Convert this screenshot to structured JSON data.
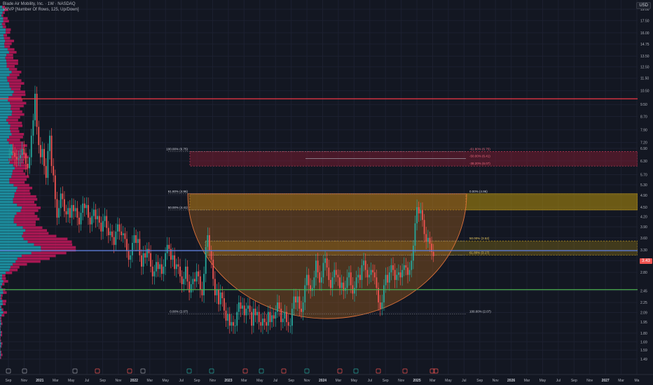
{
  "header": {
    "symbol_line": "Blade Air Mobility, Inc. · 1W · NASDAQ",
    "indicator_line": "VRVP [Number Of Rows, 125, Up/Down]"
  },
  "currency": "USD",
  "last_price_badge": "3.43",
  "colors": {
    "bg": "#131722",
    "grid": "#1c2030",
    "up": "#26a69a",
    "down": "#ef5350",
    "resistance": "#f23645",
    "support": "#4caf50",
    "poc": "#5b7bd5",
    "zone_fill": "#a5870f",
    "zone_border": "#c9a227",
    "cup_fill": "#b86a1d",
    "red_zone": "#8c1c34",
    "vp_up": "#1e9fb0",
    "vp_down": "#c2185b"
  },
  "chart_data": {
    "type": "candlestick",
    "scale": "log",
    "ylim": [
      1.49,
      19.5
    ],
    "y_ticks": [
      "19.00",
      "17.50",
      "16.00",
      "14.75",
      "13.50",
      "12.50",
      "11.50",
      "10.50",
      "9.50",
      "8.70",
      "7.90",
      "7.20",
      "6.90",
      "6.30",
      "5.70",
      "5.30",
      "4.90",
      "4.50",
      "4.20",
      "3.90",
      "3.60",
      "3.30",
      "3.05",
      "2.80",
      "2.45",
      "2.25",
      "2.09",
      "1.95",
      "1.80",
      "1.69",
      "1.59",
      "1.49"
    ],
    "x_ticks": [
      "Sep",
      "Nov",
      "2021",
      "Mar",
      "May",
      "Jul",
      "Sep",
      "Nov",
      "2022",
      "Mar",
      "May",
      "Jul",
      "Sep",
      "Nov",
      "2023",
      "Mar",
      "May",
      "Jul",
      "Sep",
      "Nov",
      "2024",
      "Mar",
      "May",
      "Jul",
      "Sep",
      "Nov",
      "2025",
      "Mar",
      "May",
      "Jul",
      "Sep",
      "Nov",
      "2026",
      "Mar",
      "May",
      "Jul",
      "Sep",
      "Nov",
      "2027",
      "Mar",
      "Ma"
    ],
    "horizontal_lines": [
      {
        "name": "resistance",
        "price": 9.9
      },
      {
        "name": "support",
        "price": 2.47
      },
      {
        "name": "poc",
        "price": 3.28
      }
    ],
    "fib_left": [
      {
        "label": "0.00% (2.07)",
        "price": 2.07
      },
      {
        "label": "50.00% (4.41)",
        "price": 4.41
      },
      {
        "label": "61.80% (4.96)",
        "price": 4.96
      },
      {
        "label": "100.00% (6.75)",
        "price": 6.75
      }
    ],
    "fib_right": [
      {
        "label": "0.00% (4.96)",
        "price": 4.96
      },
      {
        "label": "50.00% (3.52)",
        "price": 3.52
      },
      {
        "label": "61.80% (3.17)",
        "price": 3.17
      },
      {
        "label": "100.00% (2.07)",
        "price": 2.07
      },
      {
        "label": "-61.80% (6.75)",
        "price": 6.75
      },
      {
        "label": "-50.00% (6.41)",
        "price": 6.41
      },
      {
        "label": "-38.20% (6.07)",
        "price": 6.07
      }
    ],
    "zones": [
      {
        "name": "upper-supply",
        "top": 6.75,
        "bottom": 6.07
      },
      {
        "name": "cup-rim",
        "top": 4.96,
        "bottom": 4.41
      },
      {
        "name": "fib-golden",
        "top": 3.52,
        "bottom": 3.17
      }
    ],
    "cup": {
      "rim_price": 4.96,
      "bottom_price": 2.0
    },
    "candles": {
      "start": 6.6,
      "step_price": [
        0.04,
        0.1,
        -0.05,
        -0.2,
        -0.12,
        0.05,
        0.15,
        0.3,
        -0.25,
        -0.45,
        -0.2,
        0.5,
        1.1,
        0.9,
        1.8,
        -2.2,
        -1.0,
        -0.6,
        0.4,
        -0.8,
        -0.5,
        1.2,
        0.8,
        -1.5,
        -0.4,
        -0.9,
        -0.6,
        0.3,
        0.5,
        -0.2,
        -0.4,
        -0.1,
        0.2,
        -0.3,
        0.4,
        -0.2,
        0.1,
        -0.3,
        -0.2,
        0.35,
        0.3,
        -0.15,
        0.1,
        -0.4,
        -0.2,
        0.25,
        0.2,
        -0.3,
        0.1,
        -0.2,
        -0.25,
        0.3,
        0.15,
        -0.35,
        -0.2,
        0.1,
        -0.15,
        -0.2,
        0.35,
        0.2,
        -0.2,
        -0.1,
        0.05,
        -0.15,
        -0.3,
        -0.2,
        0.1,
        0.3,
        0.2,
        -0.2,
        0.1,
        -0.4,
        -0.25,
        0.3,
        -0.1,
        0.2,
        -0.1,
        -0.3,
        -0.2,
        0.1,
        0.2,
        -0.15,
        0.1,
        -0.2,
        0.15,
        0.3,
        0.2,
        -0.1,
        -0.25,
        0.1,
        -0.3,
        0.1,
        -0.05,
        -0.2,
        -0.15,
        0.1,
        0.25,
        -0.3,
        -0.2,
        0.15,
        0.1,
        -0.05,
        0.2,
        -0.1,
        -0.25,
        -0.1,
        0.4,
        0.6,
        0.3,
        -0.4,
        -0.2,
        -0.4,
        -0.3,
        0.1,
        -0.25,
        0.2,
        -0.1,
        -0.2,
        -0.15,
        0.1,
        -0.3,
        0.05,
        -0.1,
        -0.05,
        0.2,
        0.15,
        -0.1,
        0.05,
        -0.15,
        0.1,
        0.05,
        -0.1,
        -0.2,
        0.25,
        -0.1,
        0.05,
        -0.15,
        -0.2,
        0.1,
        -0.05,
        -0.1,
        0.2,
        -0.15,
        0.1,
        -0.05,
        0.1,
        0.15,
        -0.1,
        -0.2,
        0.05,
        0.1,
        -0.15,
        -0.2,
        -0.1,
        0.25,
        0.2,
        -0.1,
        0.1,
        -0.2,
        -0.05,
        0.15,
        0.3,
        0.2,
        -0.2,
        -0.1,
        0.05,
        0.2,
        0.35,
        -0.25,
        -0.2,
        0.1,
        0.3,
        0.1,
        -0.2,
        -0.25,
        -0.15,
        0.2,
        0.15,
        -0.1,
        -0.05,
        -0.2,
        0.1,
        -0.15,
        0.05,
        0.2,
        0.1,
        -0.25,
        -0.15,
        0.1,
        0.2,
        0.05,
        -0.1,
        0.3,
        0.1,
        -0.2,
        -0.15,
        0.05,
        0.1,
        -0.05,
        -0.1,
        -0.2,
        -0.25,
        -0.1,
        0.1,
        0.3,
        0.2,
        -0.15,
        0.2,
        0.15,
        -0.1,
        -0.2,
        0.1,
        0.05,
        -0.1,
        0.15,
        0.1,
        -0.05,
        -0.15,
        0.1,
        0.2,
        0.35,
        0.6,
        0.5,
        -0.2,
        0.1,
        -0.3,
        -0.4,
        -0.2,
        0.1,
        -0.15,
        -0.2,
        -0.1
      ]
    }
  }
}
